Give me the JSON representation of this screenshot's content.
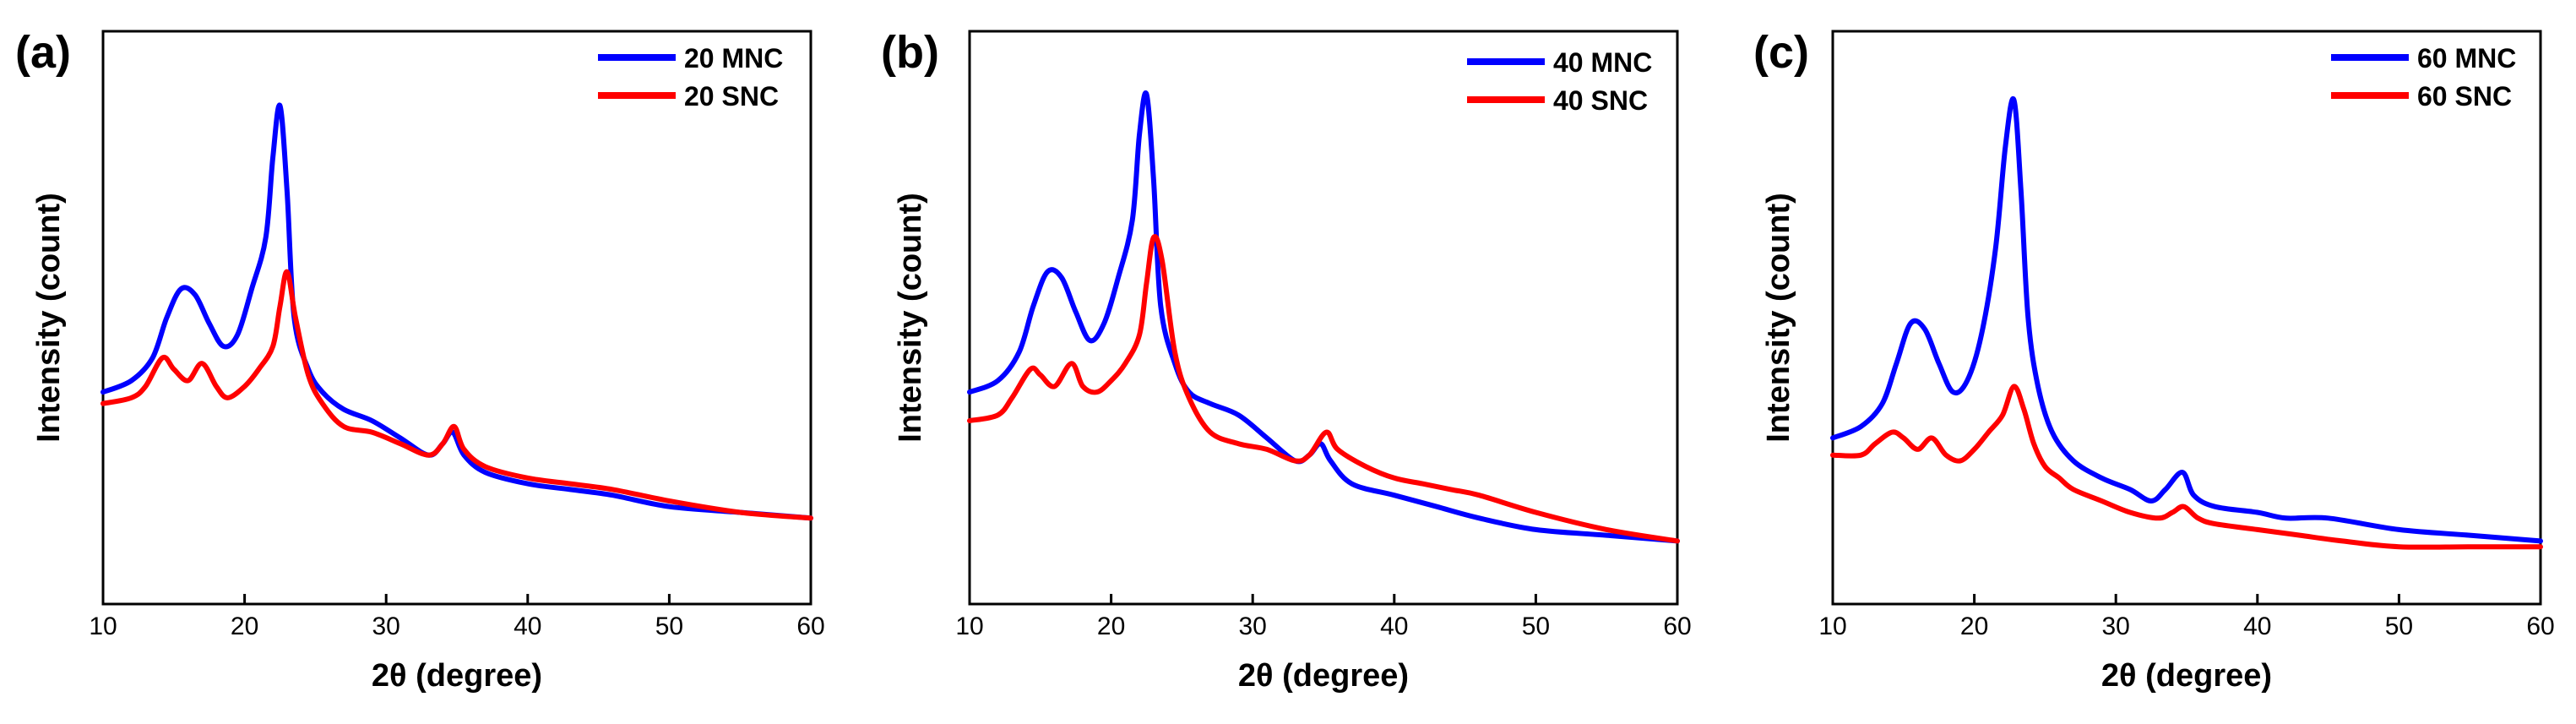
{
  "chart_data": [
    {
      "type": "line",
      "panel_label": "(a)",
      "xlabel": "2θ (degree)",
      "ylabel": "Intensity (count)",
      "xlim": [
        10,
        60
      ],
      "ylim": [
        0,
        100
      ],
      "x_ticks": [
        10,
        20,
        30,
        40,
        50,
        60
      ],
      "x_tick_labels": [
        "10",
        "20",
        "30",
        "40",
        "50",
        "60"
      ],
      "y_ticks_shown": false,
      "legend_position": "top-right",
      "series": [
        {
          "name": "20 MNC",
          "color": "#0000ff",
          "x": [
            10,
            12,
            13.5,
            14.5,
            15.5,
            16.5,
            17.5,
            18.5,
            19.5,
            20.5,
            21.5,
            22,
            22.5,
            23,
            23.5,
            24.5,
            25.5,
            27,
            29,
            31,
            33,
            34,
            34.7,
            35.5,
            37,
            40,
            43,
            46,
            50,
            55,
            60
          ],
          "y": [
            37,
            39,
            43,
            50,
            55,
            54,
            49,
            45,
            47,
            55,
            64,
            78,
            87,
            72,
            50,
            41,
            37,
            34,
            32,
            29,
            26,
            28,
            30,
            26,
            23,
            21,
            20,
            19,
            17,
            16,
            15
          ]
        },
        {
          "name": "20 SNC",
          "color": "#ff0000",
          "x": [
            10,
            12,
            13,
            14.2,
            15,
            16,
            17,
            18,
            18.8,
            20,
            21,
            22,
            22.5,
            23,
            23.6,
            24.5,
            25.5,
            27,
            29,
            31,
            33,
            34,
            34.8,
            35.5,
            37,
            40,
            43,
            46,
            50,
            55,
            60
          ],
          "y": [
            35,
            36,
            38,
            43,
            41,
            39,
            42,
            38,
            36,
            38,
            41,
            45,
            52,
            58,
            50,
            40,
            35,
            31,
            30,
            28,
            26,
            28,
            31,
            27,
            24,
            22,
            21,
            20,
            18,
            16,
            15
          ]
        }
      ]
    },
    {
      "type": "line",
      "panel_label": "(b)",
      "xlabel": "2θ (degree)",
      "ylabel": "Intensity (count)",
      "xlim": [
        10,
        60
      ],
      "ylim": [
        0,
        100
      ],
      "x_ticks": [
        10,
        20,
        30,
        40,
        50,
        60
      ],
      "x_tick_labels": [
        "10",
        "20",
        "30",
        "40",
        "50",
        "60"
      ],
      "y_ticks_shown": false,
      "legend_position": "top-right",
      "series": [
        {
          "name": "40 MNC",
          "color": "#0000ff",
          "x": [
            10,
            12,
            13.5,
            14.5,
            15.5,
            16.5,
            17.5,
            18.5,
            19.5,
            20.5,
            21.5,
            22,
            22.5,
            23,
            23.5,
            24.5,
            25.5,
            27,
            29,
            31,
            33,
            34,
            34.8,
            35.5,
            37,
            40,
            43,
            46,
            50,
            55,
            60
          ],
          "y": [
            37,
            39,
            44,
            52,
            58,
            57,
            51,
            46,
            49,
            57,
            67,
            82,
            89,
            74,
            52,
            42,
            37,
            35,
            33,
            29,
            25,
            26,
            28,
            25,
            21,
            19,
            17,
            15,
            13,
            12,
            11
          ]
        },
        {
          "name": "40 SNC",
          "color": "#ff0000",
          "x": [
            10,
            12,
            13,
            14.3,
            15,
            16,
            17.2,
            18,
            19,
            20,
            21,
            22,
            22.5,
            23,
            23.6,
            24.5,
            25.5,
            27,
            29,
            31,
            33,
            34,
            35.2,
            36,
            38,
            40,
            42,
            44,
            46,
            50,
            55,
            60
          ],
          "y": [
            32,
            33,
            36,
            41,
            40,
            38,
            42,
            38,
            37,
            39,
            42,
            47,
            56,
            64,
            60,
            44,
            36,
            30,
            28,
            27,
            25,
            26,
            30,
            27,
            24,
            22,
            21,
            20,
            19,
            16,
            13,
            11
          ]
        }
      ]
    },
    {
      "type": "line",
      "panel_label": "(c)",
      "xlabel": "2θ (degree)",
      "ylabel": "Intensity (count)",
      "xlim": [
        10,
        60
      ],
      "ylim": [
        0,
        100
      ],
      "x_ticks": [
        10,
        20,
        30,
        40,
        50,
        60
      ],
      "x_tick_labels": [
        "10",
        "20",
        "30",
        "40",
        "50",
        "60"
      ],
      "y_ticks_shown": false,
      "legend_position": "top-right",
      "series": [
        {
          "name": "60 MNC",
          "color": "#0000ff",
          "x": [
            10,
            12,
            13.5,
            14.5,
            15.5,
            16.5,
            17.5,
            18.5,
            19.5,
            20.5,
            21.5,
            22.2,
            22.8,
            23.3,
            23.8,
            24.5,
            25.5,
            27,
            29,
            31,
            32.5,
            33.5,
            34.7,
            35.5,
            37,
            40,
            42,
            45,
            50,
            55,
            60
          ],
          "y": [
            29,
            31,
            35,
            42,
            49,
            48,
            42,
            37,
            39,
            47,
            62,
            80,
            88,
            72,
            50,
            38,
            30,
            25,
            22,
            20,
            18,
            20,
            23,
            19,
            17,
            16,
            15,
            15,
            13,
            12,
            11
          ]
        },
        {
          "name": "60 SNC",
          "color": "#ff0000",
          "x": [
            10,
            12,
            13,
            14.2,
            15,
            16,
            17,
            18,
            19,
            20,
            21,
            22,
            22.8,
            23.5,
            24.2,
            25,
            26,
            27,
            29,
            31,
            33,
            34,
            34.8,
            35.8,
            37,
            40,
            43,
            46,
            50,
            55,
            60
          ],
          "y": [
            26,
            26,
            28,
            30,
            29,
            27,
            29,
            26,
            25,
            27,
            30,
            33,
            38,
            34,
            28,
            24,
            22,
            20,
            18,
            16,
            15,
            16,
            17,
            15,
            14,
            13,
            12,
            11,
            10,
            10,
            10
          ]
        }
      ]
    }
  ]
}
